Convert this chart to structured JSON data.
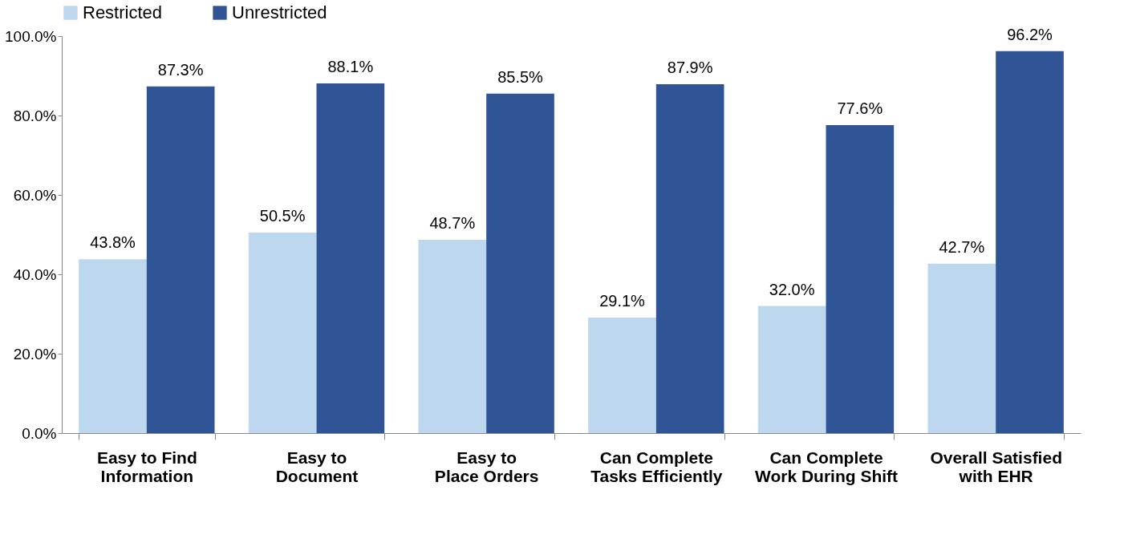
{
  "chart_data": {
    "type": "bar",
    "categories": [
      "Easy to Find Information",
      "Easy to Document",
      "Easy to Place Orders",
      "Can Complete Tasks Efficiently",
      "Can Complete Work During Shift",
      "Overall Satisfied with EHR"
    ],
    "series": [
      {
        "name": "Restricted",
        "color": "#bdd7ee",
        "values": [
          43.8,
          50.5,
          48.7,
          29.1,
          32.0,
          42.7
        ],
        "value_labels": [
          "43.8%",
          "50.5%",
          "48.7%",
          "29.1%",
          "32.0%",
          "42.7%"
        ]
      },
      {
        "name": "Unrestricted",
        "color": "#2f5597",
        "values": [
          87.3,
          88.1,
          85.5,
          87.9,
          77.6,
          96.2
        ],
        "value_labels": [
          "87.3%",
          "88.1%",
          "85.5%",
          "87.9%",
          "77.6%",
          "96.2%"
        ]
      }
    ],
    "ylim": [
      0,
      100
    ],
    "yticks": [
      {
        "value": 0,
        "label": "0.0%"
      },
      {
        "value": 20,
        "label": "20.0%"
      },
      {
        "value": 40,
        "label": "40.0%"
      },
      {
        "value": 60,
        "label": "60.0%"
      },
      {
        "value": 80,
        "label": "80.0%"
      },
      {
        "value": 100,
        "label": "100.0%"
      }
    ],
    "grid": false,
    "legend": "top"
  }
}
